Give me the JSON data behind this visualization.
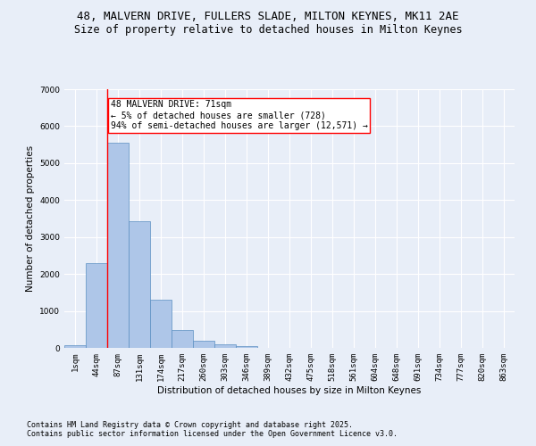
{
  "title1": "48, MALVERN DRIVE, FULLERS SLADE, MILTON KEYNES, MK11 2AE",
  "title2": "Size of property relative to detached houses in Milton Keynes",
  "xlabel": "Distribution of detached houses by size in Milton Keynes",
  "ylabel": "Number of detached properties",
  "categories": [
    "1sqm",
    "44sqm",
    "87sqm",
    "131sqm",
    "174sqm",
    "217sqm",
    "260sqm",
    "303sqm",
    "346sqm",
    "389sqm",
    "432sqm",
    "475sqm",
    "518sqm",
    "561sqm",
    "604sqm",
    "648sqm",
    "691sqm",
    "734sqm",
    "777sqm",
    "820sqm",
    "863sqm"
  ],
  "values": [
    75,
    2300,
    5550,
    3430,
    1310,
    490,
    185,
    95,
    40,
    5,
    0,
    0,
    0,
    0,
    0,
    0,
    0,
    0,
    0,
    0,
    0
  ],
  "bar_color": "#aec6e8",
  "bar_edge_color": "#5a8fc2",
  "vline_x": 1.5,
  "vline_color": "red",
  "annotation_text": "48 MALVERN DRIVE: 71sqm\n← 5% of detached houses are smaller (728)\n94% of semi-detached houses are larger (12,571) →",
  "annotation_box_color": "white",
  "annotation_box_edge_color": "red",
  "ylim": [
    0,
    7000
  ],
  "yticks": [
    0,
    1000,
    2000,
    3000,
    4000,
    5000,
    6000,
    7000
  ],
  "background_color": "#e8eef8",
  "grid_color": "white",
  "footer1": "Contains HM Land Registry data © Crown copyright and database right 2025.",
  "footer2": "Contains public sector information licensed under the Open Government Licence v3.0.",
  "title1_fontsize": 9,
  "title2_fontsize": 8.5,
  "axis_label_fontsize": 7.5,
  "tick_fontsize": 6.5,
  "annotation_fontsize": 7,
  "footer_fontsize": 6
}
